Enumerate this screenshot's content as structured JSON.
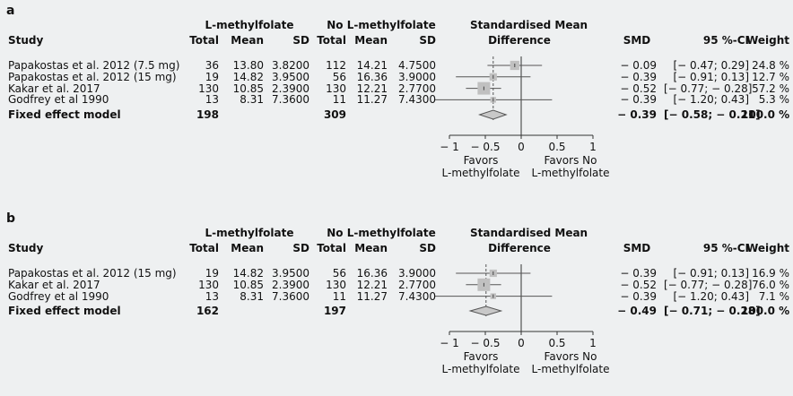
{
  "chart_data": [
    {
      "type": "forest",
      "panel_label": "a",
      "headers": {
        "group1": "L-methylfolate",
        "group2": "No L-methylfolate",
        "study": "Study",
        "total": "Total",
        "mean": "Mean",
        "sd": "SD",
        "smd_title_1": "Standardised Mean",
        "smd_title_2": "Difference",
        "smd": "SMD",
        "ci": "95 %-CI",
        "weight": "Weight"
      },
      "studies": [
        {
          "name": "Papakostas et al. 2012 (7.5 mg)",
          "t1": "36",
          "m1": "13.80",
          "sd1": "3.8200",
          "t2": "112",
          "m2": "14.21",
          "sd2": "4.7500",
          "smd": -0.09,
          "lo": -0.47,
          "hi": 0.29,
          "weight": 24.8,
          "smd_text": "− 0.09",
          "ci_text": "[− 0.47; 0.29]",
          "weight_text": "24.8 %"
        },
        {
          "name": "Papakostas et al. 2012 (15 mg)",
          "t1": "19",
          "m1": "14.82",
          "sd1": "3.9500",
          "t2": "56",
          "m2": "16.36",
          "sd2": "3.9000",
          "smd": -0.39,
          "lo": -0.91,
          "hi": 0.13,
          "weight": 12.7,
          "smd_text": "− 0.39",
          "ci_text": "[− 0.91; 0.13]",
          "weight_text": "12.7 %"
        },
        {
          "name": "Kakar et al. 2017",
          "t1": "130",
          "m1": "10.85",
          "sd1": "2.3900",
          "t2": "130",
          "m2": "12.21",
          "sd2": "2.7700",
          "smd": -0.52,
          "lo": -0.77,
          "hi": -0.28,
          "weight": 57.2,
          "smd_text": "− 0.52",
          "ci_text": "[− 0.77; − 0.28]",
          "weight_text": "57.2 %"
        },
        {
          "name": "Godfrey et al 1990",
          "t1": "13",
          "m1": "8.31",
          "sd1": "7.3600",
          "t2": "11",
          "m2": "11.27",
          "sd2": "7.4300",
          "smd": -0.39,
          "lo": -1.2,
          "hi": 0.43,
          "weight": 5.3,
          "smd_text": "− 0.39",
          "ci_text": "[− 1.20; 0.43]",
          "weight_text": "5.3 %"
        }
      ],
      "pooled": {
        "name": "Fixed effect model",
        "t1": "198",
        "t2": "309",
        "smd": -0.39,
        "lo": -0.58,
        "hi": -0.21,
        "smd_text": "− 0.39",
        "ci_text": "[− 0.58; − 0.21]",
        "weight_text": "100.0 %"
      },
      "x_range": [
        -1,
        1
      ],
      "x_ticks": [
        -1,
        -0.5,
        0,
        0.5,
        1
      ],
      "x_tick_labels": [
        "− 1",
        "− 0.5",
        "0",
        "0.5",
        "1"
      ],
      "favors_left": [
        "Favors",
        "L-methylfolate"
      ],
      "favors_right": [
        "Favors No",
        "L-methylfolate"
      ]
    },
    {
      "type": "forest",
      "panel_label": "b",
      "headers": {
        "group1": "L-methylfolate",
        "group2": "No L-methylfolate",
        "study": "Study",
        "total": "Total",
        "mean": "Mean",
        "sd": "SD",
        "smd_title_1": "Standardised Mean",
        "smd_title_2": "Difference",
        "smd": "SMD",
        "ci": "95 %-CI",
        "weight": "Weight"
      },
      "studies": [
        {
          "name": "Papakostas et al. 2012 (15 mg)",
          "t1": "19",
          "m1": "14.82",
          "sd1": "3.9500",
          "t2": "56",
          "m2": "16.36",
          "sd2": "3.9000",
          "smd": -0.39,
          "lo": -0.91,
          "hi": 0.13,
          "weight": 16.9,
          "smd_text": "− 0.39",
          "ci_text": "[− 0.91; 0.13]",
          "weight_text": "16.9 %"
        },
        {
          "name": "Kakar et al. 2017",
          "t1": "130",
          "m1": "10.85",
          "sd1": "2.3900",
          "t2": "130",
          "m2": "12.21",
          "sd2": "2.7700",
          "smd": -0.52,
          "lo": -0.77,
          "hi": -0.28,
          "weight": 76.0,
          "smd_text": "− 0.52",
          "ci_text": "[− 0.77; − 0.28]",
          "weight_text": "76.0 %"
        },
        {
          "name": "Godfrey et al 1990",
          "t1": "13",
          "m1": "8.31",
          "sd1": "7.3600",
          "t2": "11",
          "m2": "11.27",
          "sd2": "7.4300",
          "smd": -0.39,
          "lo": -1.2,
          "hi": 0.43,
          "weight": 7.1,
          "smd_text": "− 0.39",
          "ci_text": "[− 1.20; 0.43]",
          "weight_text": "7.1 %"
        }
      ],
      "pooled": {
        "name": "Fixed effect model",
        "t1": "162",
        "t2": "197",
        "smd": -0.49,
        "lo": -0.71,
        "hi": -0.28,
        "smd_text": "− 0.49",
        "ci_text": "[− 0.71; − 0.28]",
        "weight_text": "100.0 %"
      },
      "x_range": [
        -1,
        1
      ],
      "x_ticks": [
        -1,
        -0.5,
        0,
        0.5,
        1
      ],
      "x_tick_labels": [
        "− 1",
        "− 0.5",
        "0",
        "0.5",
        "1"
      ],
      "favors_left": [
        "Favors",
        "L-methylfolate"
      ],
      "favors_right": [
        "Favors No",
        "L-methylfolate"
      ]
    }
  ],
  "colors": {
    "background": "#eef0f1",
    "square": "#c0c0c0",
    "ci_line": "#555555",
    "diamond": "#c8c8c8",
    "axis": "#333333"
  }
}
